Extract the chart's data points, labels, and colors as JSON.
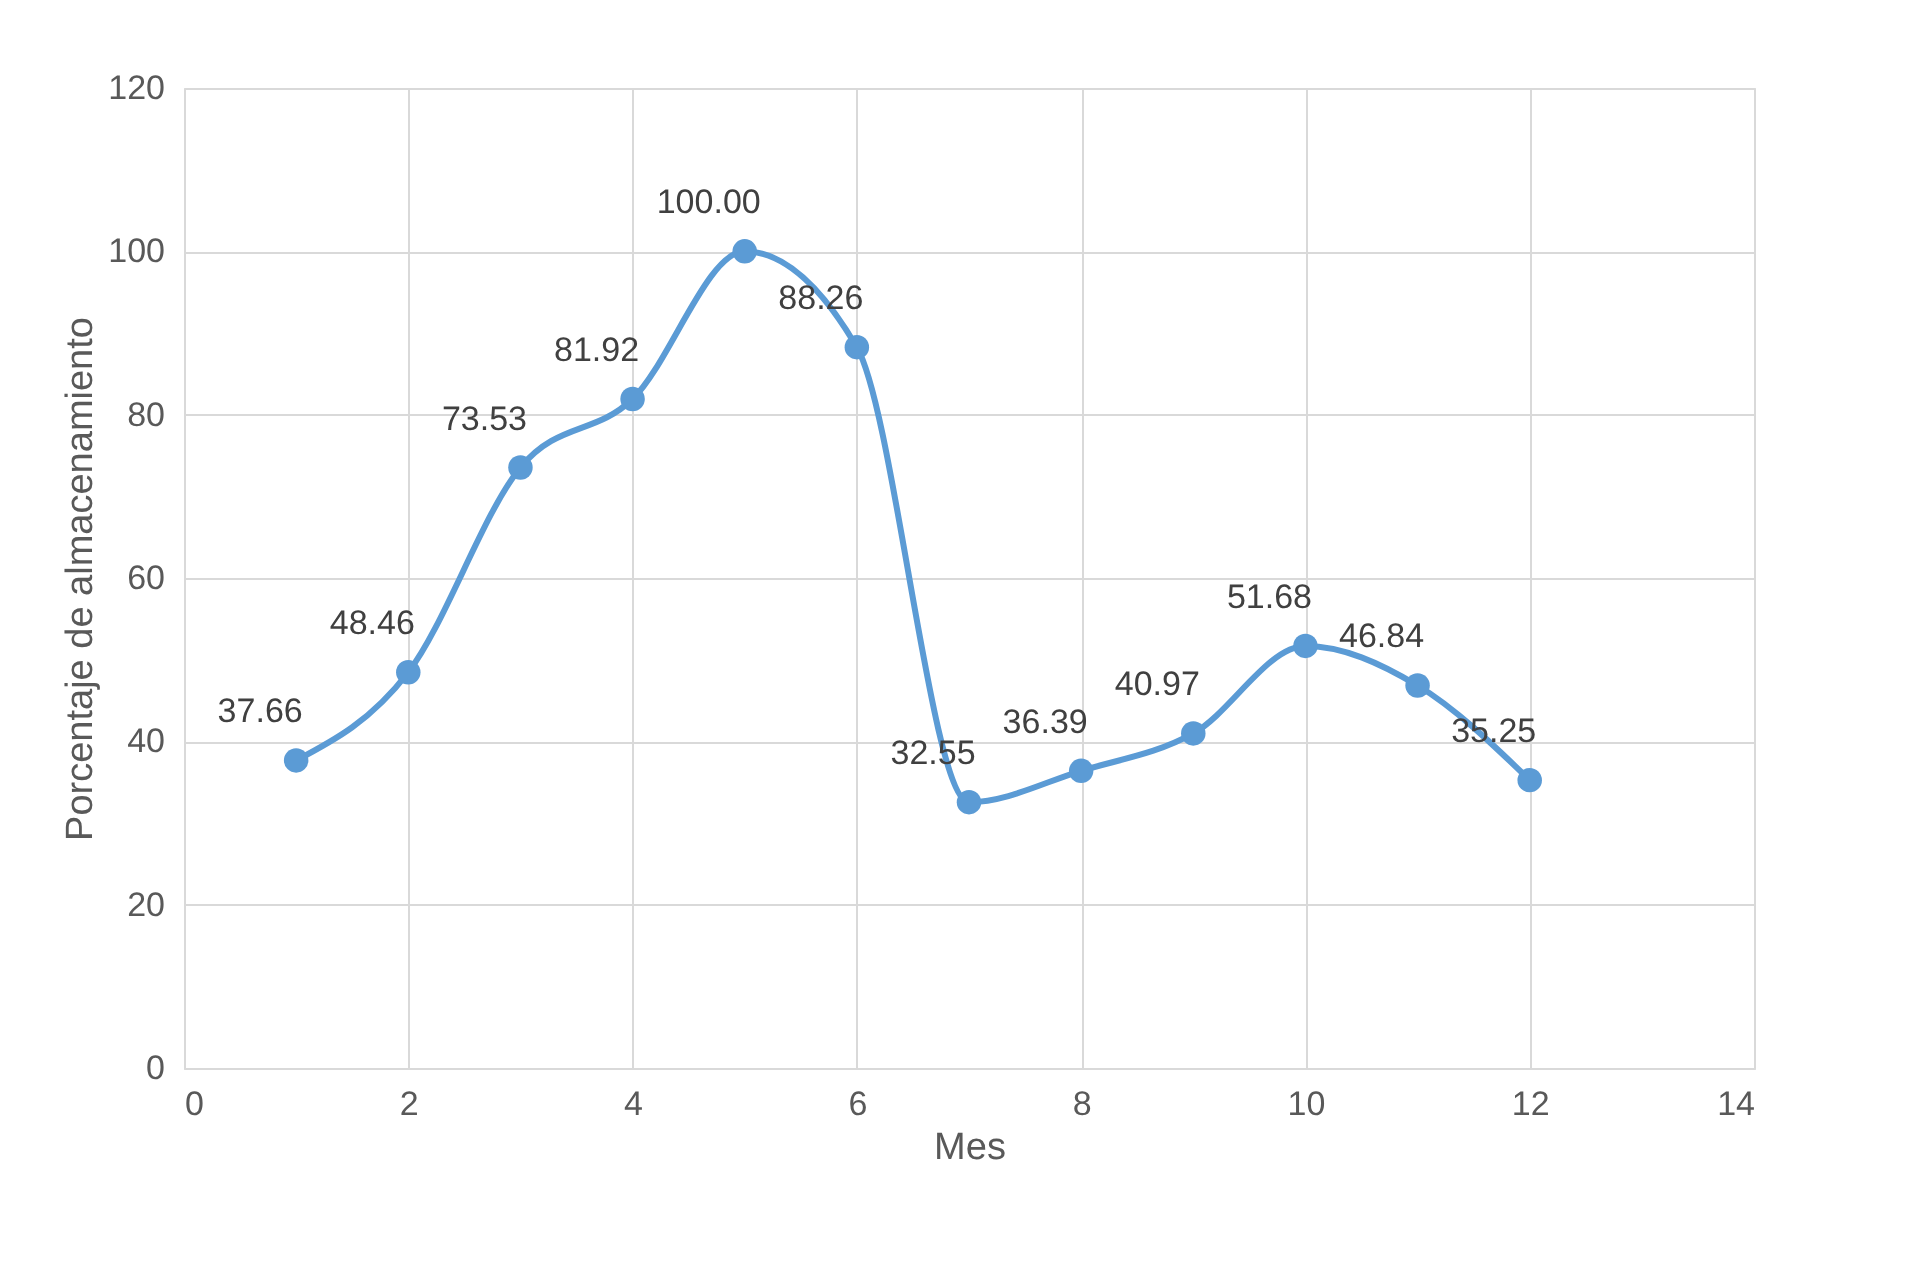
{
  "chart_data": {
    "type": "line",
    "xlabel": "Mes",
    "ylabel": "Porcentaje de almacenamiento",
    "x": [
      1,
      2,
      3,
      4,
      5,
      6,
      7,
      8,
      9,
      10,
      11,
      12
    ],
    "series": [
      {
        "color": "#5b9bd5",
        "values": [
          37.66,
          48.46,
          73.53,
          81.92,
          100.0,
          88.26,
          32.55,
          36.39,
          40.97,
          51.68,
          46.84,
          35.25
        ]
      }
    ],
    "value_labels": [
      "37.66",
      "48.46",
      "73.53",
      "81.92",
      "100.00",
      "88.26",
      "32.55",
      "36.39",
      "40.97",
      "51.68",
      "46.84",
      "35.25"
    ],
    "xlim": [
      0,
      14
    ],
    "xticks": [
      0,
      2,
      4,
      6,
      8,
      10,
      12,
      14
    ],
    "ylim": [
      0,
      120
    ],
    "yticks": [
      0,
      20,
      40,
      60,
      80,
      100,
      120
    ],
    "grid": true,
    "marker": "circle",
    "line_style": "solid"
  }
}
